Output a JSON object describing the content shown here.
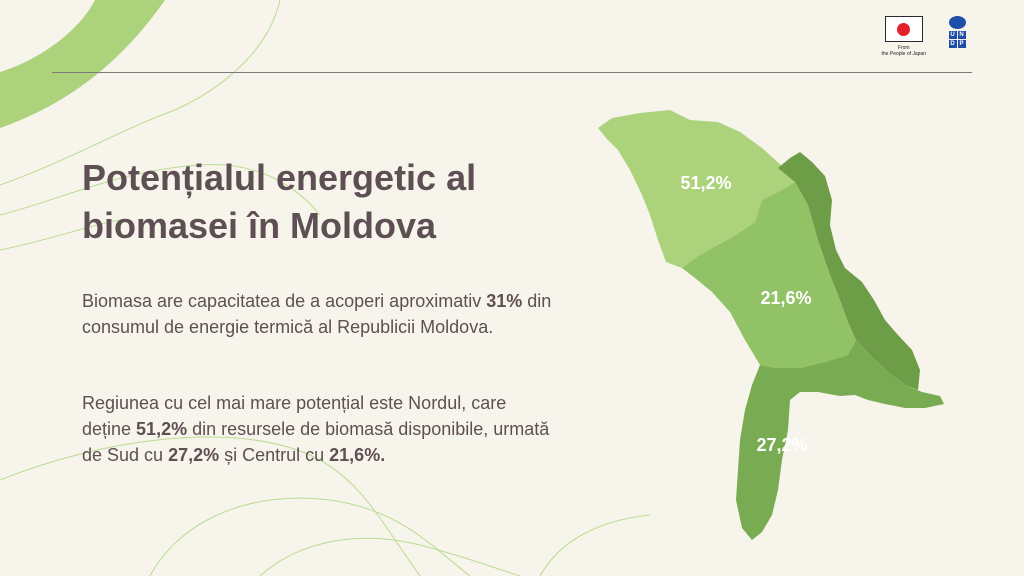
{
  "header": {
    "japan_caption_line1": "From",
    "japan_caption_line2": "the People of Japan",
    "undp_letters": [
      "U",
      "N",
      "D",
      "P"
    ]
  },
  "title": "Potențialul energetic al biomasei în Moldova",
  "paragraph1": {
    "part1": "Biomasa are capacitatea de a acoperi aproximativ ",
    "highlight": "31%",
    "part2": " din consumul de energie termică al Republicii Moldova."
  },
  "paragraph2": {
    "part1": "Regiunea cu cel mai mare potențial este Nordul, care deține ",
    "north": "51,2%",
    "part2": " din resursele de biomasă disponibile, urmată de Sud cu ",
    "south": "27,2%",
    "part3": " și Centrul cu ",
    "center": "21,6%."
  },
  "map": {
    "north_label": "51,2%",
    "center_label": "21,6%",
    "south_label": "27,2%",
    "colors": {
      "north": "#acd27c",
      "center": "#92c266",
      "south": "#79ab52",
      "transnistria": "#6e9d48"
    }
  }
}
